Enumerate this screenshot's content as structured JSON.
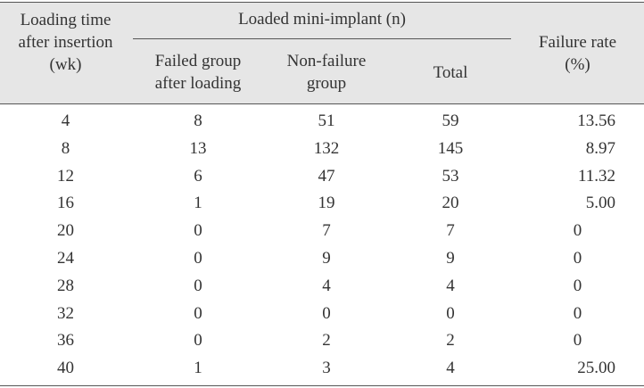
{
  "table": {
    "headers": {
      "loading_time": [
        "Loading time",
        "after insertion",
        "(wk)"
      ],
      "group": "Loaded mini-implant (n)",
      "failed": [
        "Failed group",
        "after loading"
      ],
      "nonfailure": [
        "Non-failure",
        "group"
      ],
      "total": "Total",
      "rate": [
        "Failure rate",
        "(%)"
      ]
    },
    "rows": [
      {
        "wk": "4",
        "failed": "8",
        "nonfailure": "51",
        "total": "59",
        "rate": "13.56"
      },
      {
        "wk": "8",
        "failed": "13",
        "nonfailure": "132",
        "total": "145",
        "rate": "8.97"
      },
      {
        "wk": "12",
        "failed": "6",
        "nonfailure": "47",
        "total": "53",
        "rate": "11.32"
      },
      {
        "wk": "16",
        "failed": "1",
        "nonfailure": "19",
        "total": "20",
        "rate": "5.00"
      },
      {
        "wk": "20",
        "failed": "0",
        "nonfailure": "7",
        "total": "7",
        "rate": "0"
      },
      {
        "wk": "24",
        "failed": "0",
        "nonfailure": "9",
        "total": "9",
        "rate": "0"
      },
      {
        "wk": "28",
        "failed": "0",
        "nonfailure": "4",
        "total": "4",
        "rate": "0"
      },
      {
        "wk": "32",
        "failed": "0",
        "nonfailure": "0",
        "total": "0",
        "rate": "0"
      },
      {
        "wk": "36",
        "failed": "0",
        "nonfailure": "2",
        "total": "2",
        "rate": "0"
      },
      {
        "wk": "40",
        "failed": "1",
        "nonfailure": "3",
        "total": "4",
        "rate": "25.00"
      }
    ]
  }
}
